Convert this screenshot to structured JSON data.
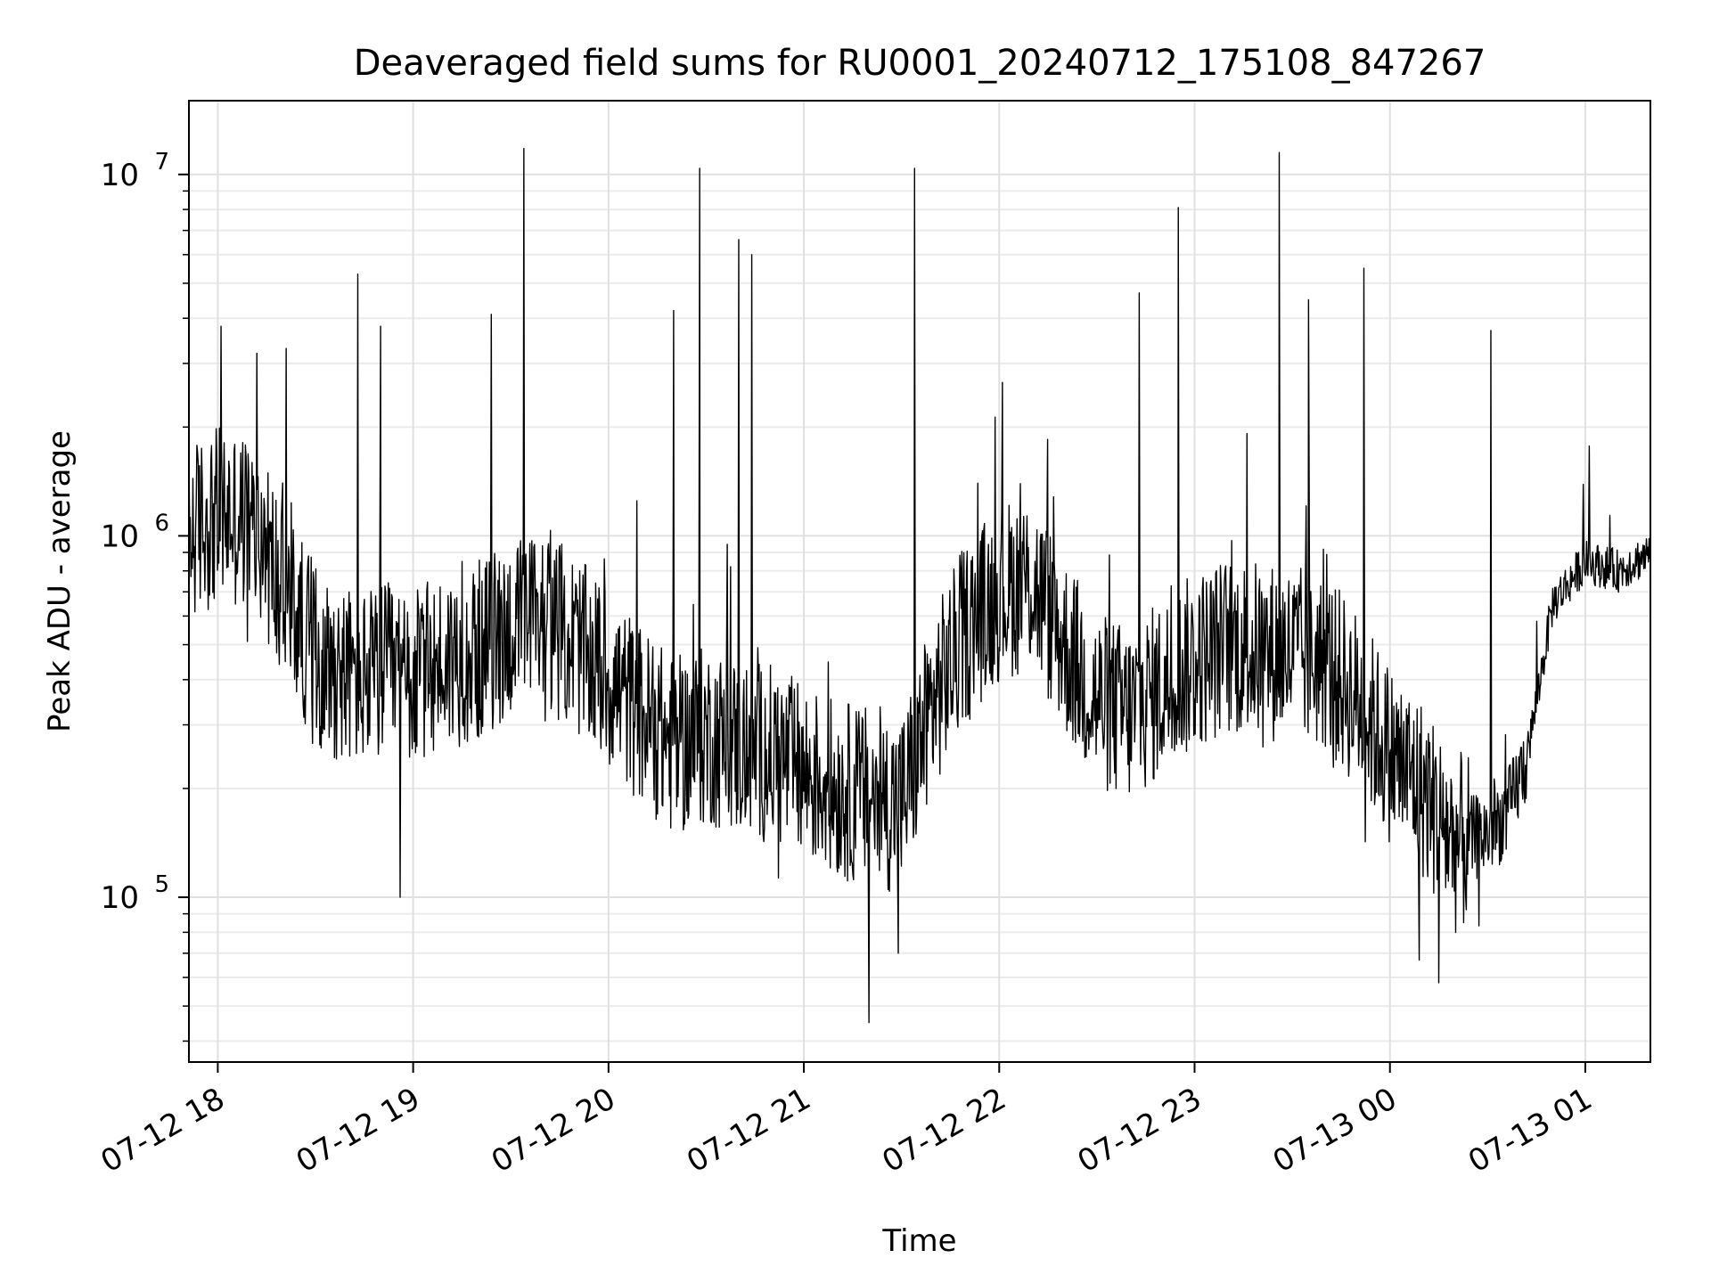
{
  "chart_data": {
    "type": "line",
    "title": "Deaveraged field sums for RU0001_20240712_175108_847267",
    "xlabel": "Time",
    "ylabel": "Peak ADU - average",
    "yscale": "log",
    "xlim": [
      "2024-07-12T17:51:08",
      "2024-07-13T01:20:00"
    ],
    "ylim": [
      35000,
      16000000
    ],
    "grid": true,
    "x_ticks": [
      {
        "t": "2024-07-12T18:00:00",
        "label": "07-12 18"
      },
      {
        "t": "2024-07-12T19:00:00",
        "label": "07-12 19"
      },
      {
        "t": "2024-07-12T20:00:00",
        "label": "07-12 20"
      },
      {
        "t": "2024-07-12T21:00:00",
        "label": "07-12 21"
      },
      {
        "t": "2024-07-12T22:00:00",
        "label": "07-12 22"
      },
      {
        "t": "2024-07-12T23:00:00",
        "label": "07-12 23"
      },
      {
        "t": "2024-07-13T00:00:00",
        "label": "07-13 00"
      },
      {
        "t": "2024-07-13T01:00:00",
        "label": "07-13 01"
      }
    ],
    "y_ticks": [
      {
        "value": 100000,
        "base": "10",
        "exp": "5"
      },
      {
        "value": 1000000,
        "base": "10",
        "exp": "6"
      },
      {
        "value": 10000000,
        "base": "10",
        "exp": "7"
      }
    ],
    "series": [
      {
        "color": "#000000",
        "x": [
          "2024-07-12T17:51:08",
          "2024-07-12T17:56:00",
          "2024-07-12T18:02:00",
          "2024-07-12T18:08:00",
          "2024-07-12T18:14:00",
          "2024-07-12T18:20:00",
          "2024-07-12T18:26:00",
          "2024-07-12T18:32:00",
          "2024-07-12T18:38:00",
          "2024-07-12T18:45:00",
          "2024-07-12T18:52:00",
          "2024-07-12T19:00:00",
          "2024-07-12T19:10:00",
          "2024-07-12T19:20:00",
          "2024-07-12T19:30:00",
          "2024-07-12T19:40:00",
          "2024-07-12T19:50:00",
          "2024-07-12T20:00:00",
          "2024-07-12T20:10:00",
          "2024-07-12T20:20:00",
          "2024-07-12T20:30:00",
          "2024-07-12T20:40:00",
          "2024-07-12T20:50:00",
          "2024-07-12T21:00:00",
          "2024-07-12T21:10:00",
          "2024-07-12T21:20:00",
          "2024-07-12T21:30:00",
          "2024-07-12T21:40:00",
          "2024-07-12T21:50:00",
          "2024-07-12T22:00:00",
          "2024-07-12T22:10:00",
          "2024-07-12T22:20:00",
          "2024-07-12T22:30:00",
          "2024-07-12T22:40:00",
          "2024-07-12T22:50:00",
          "2024-07-12T23:00:00",
          "2024-07-12T23:10:00",
          "2024-07-12T23:20:00",
          "2024-07-12T23:30:00",
          "2024-07-12T23:40:00",
          "2024-07-12T23:50:00",
          "2024-07-13T00:00:00",
          "2024-07-13T00:10:00",
          "2024-07-13T00:20:00",
          "2024-07-13T00:30:00",
          "2024-07-13T00:36:00",
          "2024-07-13T00:42:00",
          "2024-07-13T00:50:00",
          "2024-07-13T01:00:00",
          "2024-07-13T01:10:00",
          "2024-07-13T01:20:00"
        ],
        "y": [
          1000000,
          1100000,
          1150000,
          1100000,
          950000,
          700000,
          550000,
          450000,
          420000,
          400000,
          420000,
          400000,
          450000,
          480000,
          550000,
          600000,
          500000,
          400000,
          320000,
          260000,
          280000,
          260000,
          250000,
          220000,
          200000,
          190000,
          180000,
          350000,
          550000,
          700000,
          750000,
          500000,
          350000,
          320000,
          380000,
          450000,
          500000,
          480000,
          470000,
          450000,
          350000,
          250000,
          200000,
          140000,
          150000,
          170000,
          240000,
          650000,
          850000,
          800000,
          900000
        ]
      }
    ],
    "spikes": [
      {
        "t": "2024-07-12T18:01:00",
        "value": 3800000
      },
      {
        "t": "2024-07-12T18:12:00",
        "value": 3200000
      },
      {
        "t": "2024-07-12T18:21:00",
        "value": 3300000
      },
      {
        "t": "2024-07-12T18:43:00",
        "value": 5300000
      },
      {
        "t": "2024-07-12T18:50:00",
        "value": 3800000
      },
      {
        "t": "2024-07-12T19:24:00",
        "value": 4100000
      },
      {
        "t": "2024-07-12T19:34:00",
        "value": 11800000
      },
      {
        "t": "2024-07-12T20:20:00",
        "value": 4200000
      },
      {
        "t": "2024-07-12T20:28:00",
        "value": 10400000
      },
      {
        "t": "2024-07-12T20:40:00",
        "value": 6600000
      },
      {
        "t": "2024-07-12T20:44:00",
        "value": 6000000
      },
      {
        "t": "2024-07-12T21:34:00",
        "value": 10400000
      },
      {
        "t": "2024-07-12T22:43:00",
        "value": 4700000
      },
      {
        "t": "2024-07-12T22:55:00",
        "value": 8100000
      },
      {
        "t": "2024-07-12T23:26:00",
        "value": 11500000
      },
      {
        "t": "2024-07-12T23:35:00",
        "value": 4500000
      },
      {
        "t": "2024-07-12T23:52:00",
        "value": 5500000
      },
      {
        "t": "2024-07-13T00:31:00",
        "value": 3700000
      }
    ],
    "dips": [
      {
        "t": "2024-07-12T18:56:00",
        "value": 100000
      },
      {
        "t": "2024-07-12T21:20:00",
        "value": 45000
      },
      {
        "t": "2024-07-12T21:29:00",
        "value": 70000
      },
      {
        "t": "2024-07-13T00:15:00",
        "value": 58000
      },
      {
        "t": "2024-07-13T00:09:00",
        "value": 67000
      }
    ]
  }
}
